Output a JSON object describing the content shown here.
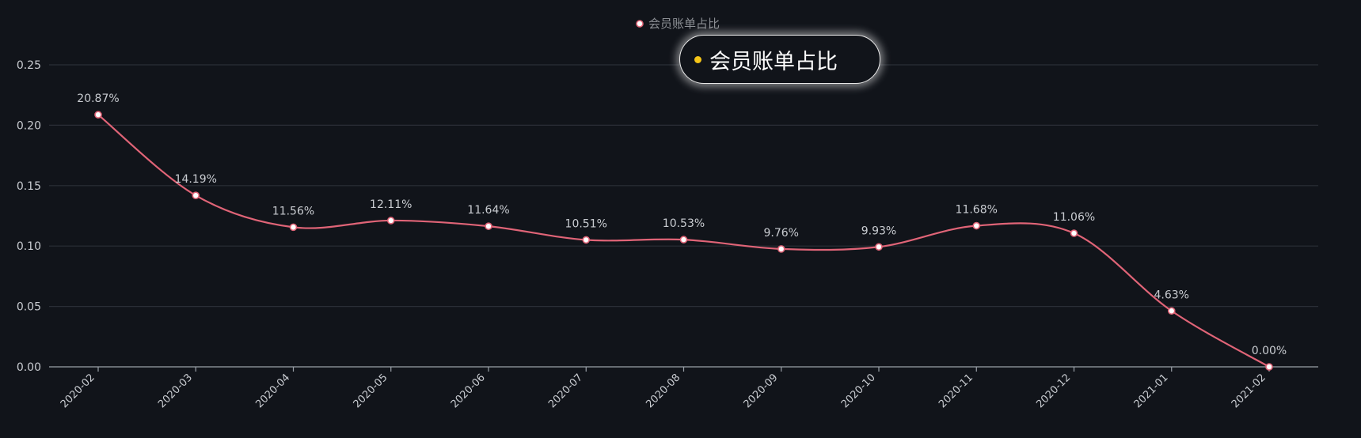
{
  "chart_data": {
    "type": "line",
    "categories": [
      "2020-02",
      "2020-03",
      "2020-04",
      "2020-05",
      "2020-06",
      "2020-07",
      "2020-08",
      "2020-09",
      "2020-10",
      "2020-11",
      "2020-12",
      "2021-01",
      "2021-02"
    ],
    "series": [
      {
        "name": "会员账单占比",
        "values": [
          0.2087,
          0.1419,
          0.1156,
          0.1211,
          0.1164,
          0.1051,
          0.1053,
          0.0976,
          0.0993,
          0.1168,
          0.1106,
          0.0463,
          0.0
        ],
        "labels": [
          "20.87%",
          "14.19%",
          "11.56%",
          "12.11%",
          "11.64%",
          "10.51%",
          "10.53%",
          "9.76%",
          "9.93%",
          "11.68%",
          "11.06%",
          "4.63%",
          "0.00%"
        ],
        "color": "#e06477"
      }
    ],
    "ylim": [
      0,
      0.25
    ],
    "yticks": [
      "0.00",
      "0.05",
      "0.10",
      "0.15",
      "0.20",
      "0.25"
    ],
    "grid": true,
    "smooth": true,
    "legend": "top-center",
    "title": "",
    "xlabel": "",
    "ylabel": ""
  },
  "tooltip": {
    "label": "会员账单占比",
    "dot_color": "#f5c518"
  },
  "colors": {
    "background": "#11141a",
    "grid": "#2a2e36",
    "axis": "#9aa0a8",
    "text": "#c9ccd1",
    "line": "#e06477"
  }
}
